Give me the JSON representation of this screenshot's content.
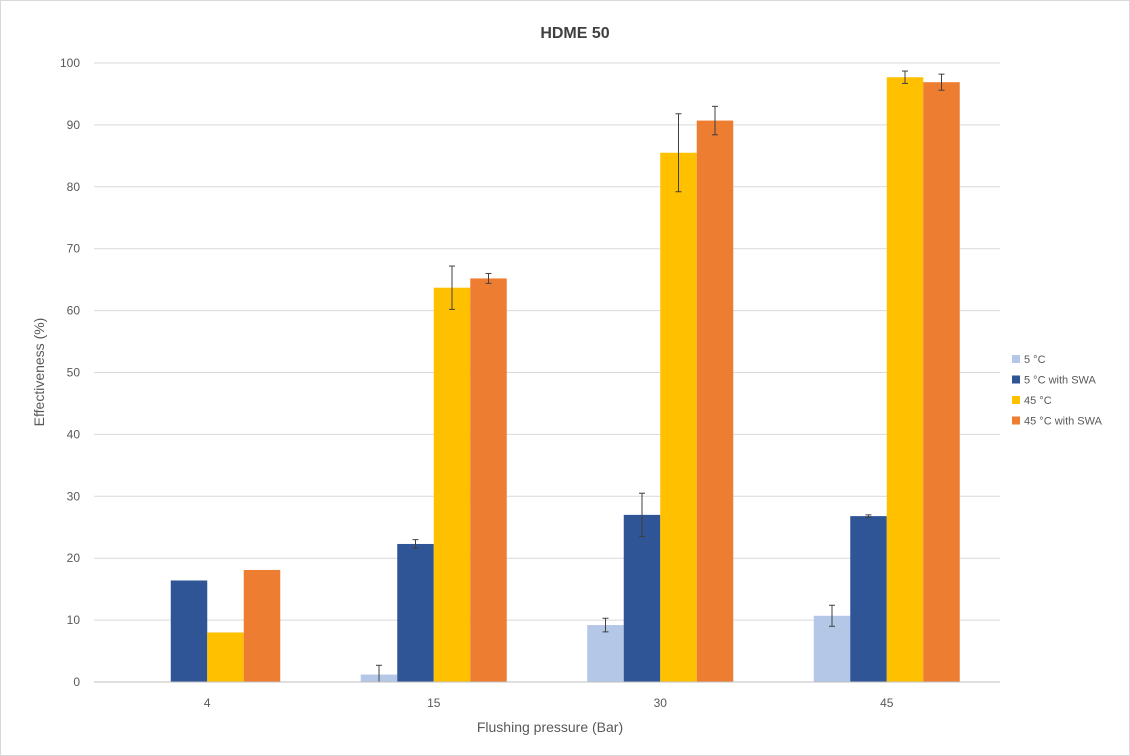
{
  "chart_data": {
    "type": "bar",
    "title": "HDME 50",
    "xlabel": "Flushing pressure (Bar)",
    "ylabel": "Effectiveness (%)",
    "ylim": [
      0,
      100
    ],
    "yticks": [
      0,
      10,
      20,
      30,
      40,
      50,
      60,
      70,
      80,
      90,
      100
    ],
    "categories": [
      "4",
      "15",
      "30",
      "45"
    ],
    "grid": true,
    "legend_position": "right",
    "series": [
      {
        "name": "5 °C",
        "color": "#b4c7e7",
        "values": [
          0,
          1.2,
          9.2,
          10.7
        ],
        "errors": [
          0,
          1.5,
          1.1,
          1.7
        ]
      },
      {
        "name": "5 °C with SWA",
        "color": "#2f5597",
        "values": [
          16.4,
          22.3,
          27.0,
          26.8
        ],
        "errors": [
          0,
          0.7,
          3.5,
          0.2
        ]
      },
      {
        "name": "45 °C",
        "color": "#ffc000",
        "values": [
          8.0,
          63.7,
          85.5,
          97.7
        ],
        "errors": [
          0,
          3.5,
          6.3,
          1.0
        ]
      },
      {
        "name": "45 °C with SWA",
        "color": "#ed7d31",
        "values": [
          18.1,
          65.2,
          90.7,
          96.9
        ],
        "errors": [
          0,
          0.8,
          2.3,
          1.3
        ]
      }
    ]
  }
}
